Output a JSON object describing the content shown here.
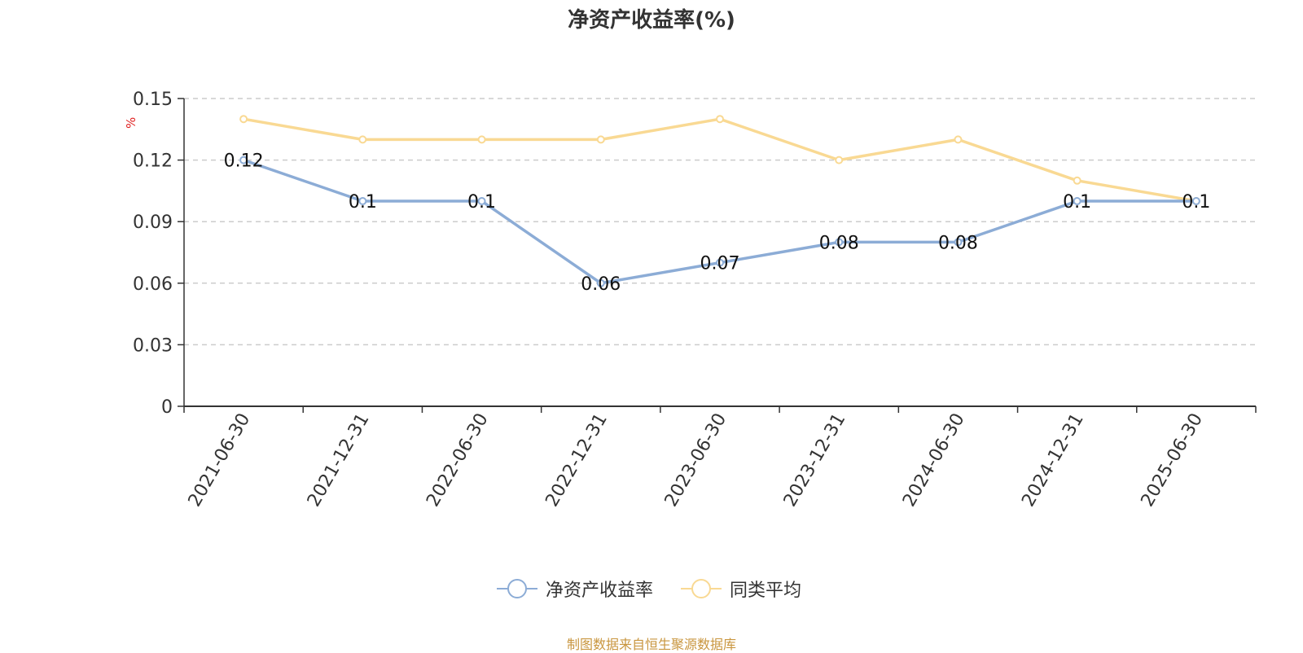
{
  "chart_data": {
    "type": "line",
    "title": "净资产收益率(%)",
    "ylabel": "%",
    "xlabel": "",
    "categories": [
      "2021-06-30",
      "2021-12-31",
      "2022-06-30",
      "2022-12-31",
      "2023-06-30",
      "2023-12-31",
      "2024-06-30",
      "2024-12-31",
      "2025-06-30"
    ],
    "ylim": [
      0,
      0.15
    ],
    "yticks": [
      "0",
      "0.03",
      "0.06",
      "0.09",
      "0.12",
      "0.15"
    ],
    "grid": true,
    "legend_position": "bottom",
    "series": [
      {
        "name": "净资产收益率",
        "color": "#8cacd6",
        "values": [
          0.12,
          0.1,
          0.1,
          0.06,
          0.07,
          0.08,
          0.08,
          0.1,
          0.1
        ],
        "data_labels": [
          "0.12",
          "0.1",
          "0.1",
          "0.06",
          "0.07",
          "0.08",
          "0.08",
          "0.1",
          "0.1"
        ]
      },
      {
        "name": "同类平均",
        "color": "#f9d993",
        "values": [
          0.14,
          0.13,
          0.13,
          0.13,
          0.14,
          0.12,
          0.13,
          0.11,
          0.1
        ]
      }
    ]
  },
  "source_note": "制图数据来自恒生聚源数据库"
}
